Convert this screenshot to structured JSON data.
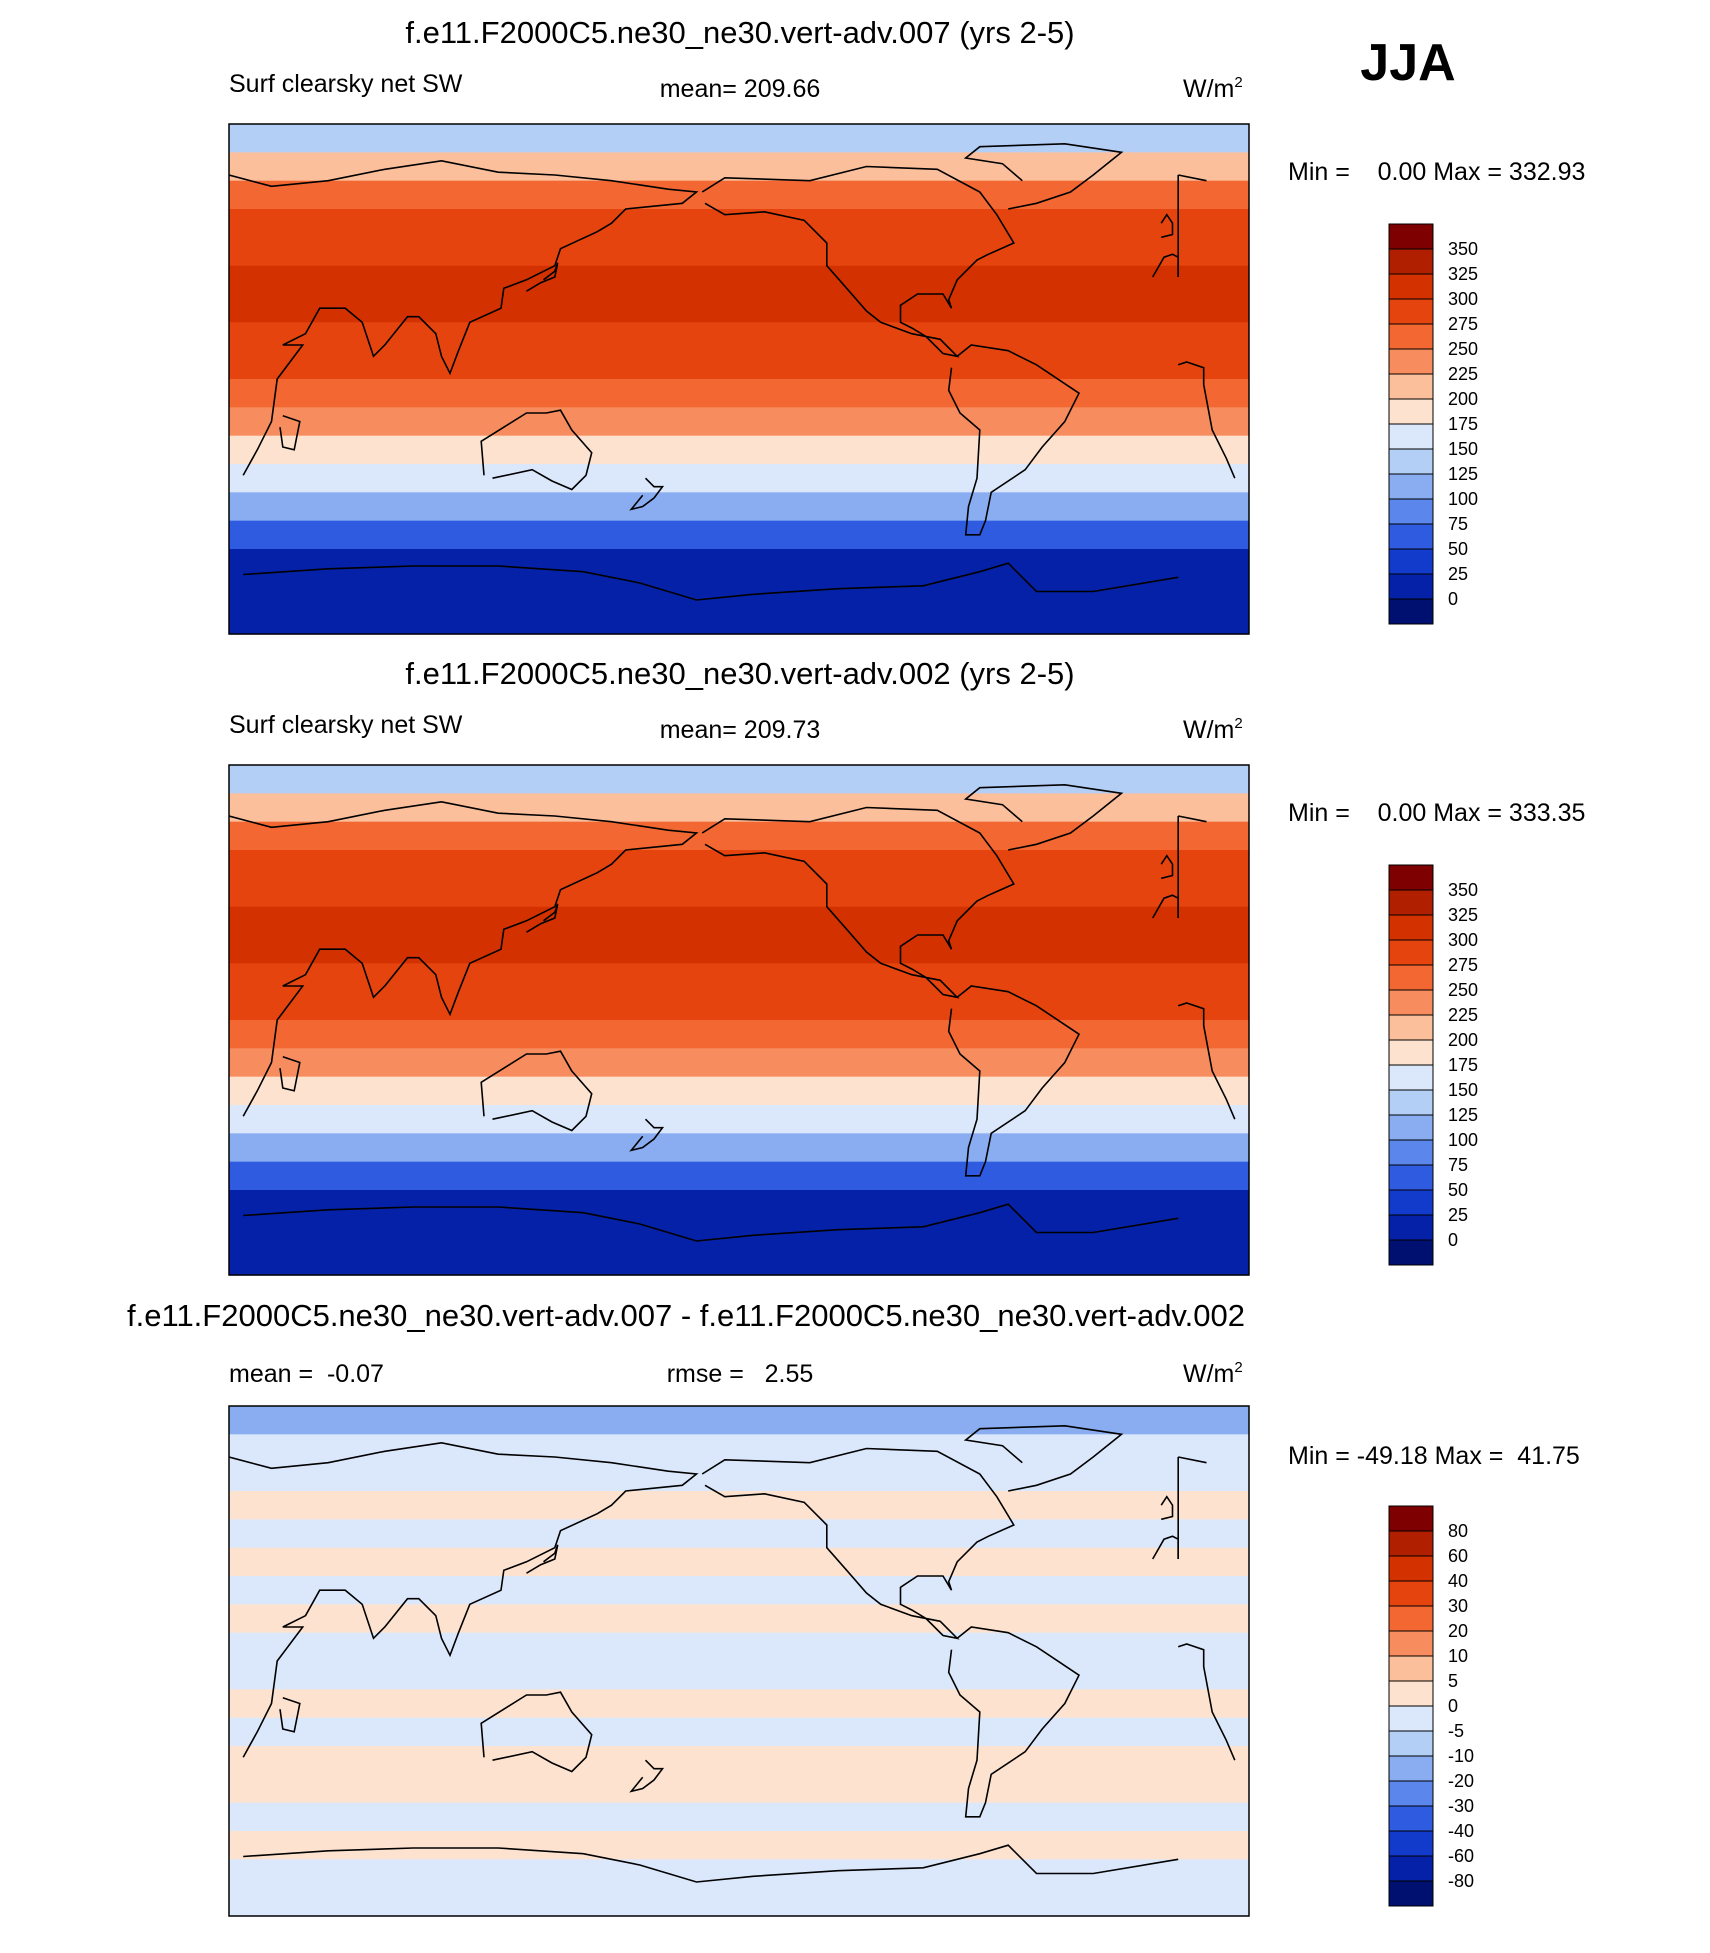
{
  "season": "JJA",
  "units": "W/m",
  "units_sup": "2",
  "chart_data": [
    {
      "type": "heatmap",
      "title": "f.e11.F2000C5.ne30_ne30.vert-adv.007 (yrs 2-5)",
      "left_label": "Surf clearsky net SW",
      "center_label": "mean= 209.66",
      "mean": 209.66,
      "minmax_label": "Min =    0.00 Max = 332.93",
      "min": 0.0,
      "max": 332.93,
      "colorbar": {
        "levels": [
          "350",
          "325",
          "300",
          "275",
          "250",
          "225",
          "200",
          "175",
          "150",
          "125",
          "100",
          "75",
          "50",
          "25",
          "0"
        ],
        "colors": [
          "#7f0000",
          "#b01f00",
          "#d43100",
          "#e6440f",
          "#f26732",
          "#f78d5e",
          "#fbbf9c",
          "#fde3cf",
          "#dbe8fb",
          "#b4cff6",
          "#89adf0",
          "#5b86eb",
          "#2e5be0",
          "#123bcc",
          "#0421a8",
          "#001070"
        ]
      },
      "field": {
        "lat_deg": [
          85,
          75,
          65,
          55,
          45,
          35,
          25,
          15,
          5,
          -5,
          -15,
          -25,
          -35,
          -45,
          -55,
          -65,
          -75,
          -85
        ],
        "zonal_mean": [
          140,
          210,
          270,
          285,
          292,
          300,
          300,
          292,
          280,
          262,
          232,
          188,
          150,
          103,
          60,
          20,
          2,
          0
        ]
      }
    },
    {
      "type": "heatmap",
      "title": "f.e11.F2000C5.ne30_ne30.vert-adv.002 (yrs 2-5)",
      "left_label": "Surf clearsky net SW",
      "center_label": "mean= 209.73",
      "mean": 209.73,
      "minmax_label": "Min =    0.00 Max = 333.35",
      "min": 0.0,
      "max": 333.35,
      "colorbar": {
        "levels": [
          "350",
          "325",
          "300",
          "275",
          "250",
          "225",
          "200",
          "175",
          "150",
          "125",
          "100",
          "75",
          "50",
          "25",
          "0"
        ],
        "colors": [
          "#7f0000",
          "#b01f00",
          "#d43100",
          "#e6440f",
          "#f26732",
          "#f78d5e",
          "#fbbf9c",
          "#fde3cf",
          "#dbe8fb",
          "#b4cff6",
          "#89adf0",
          "#5b86eb",
          "#2e5be0",
          "#123bcc",
          "#0421a8",
          "#001070"
        ]
      },
      "field": {
        "lat_deg": [
          85,
          75,
          65,
          55,
          45,
          35,
          25,
          15,
          5,
          -5,
          -15,
          -25,
          -35,
          -45,
          -55,
          -65,
          -75,
          -85
        ],
        "zonal_mean": [
          140,
          210,
          270,
          285,
          292,
          300,
          300,
          292,
          280,
          262,
          232,
          188,
          150,
          103,
          60,
          20,
          2,
          0
        ]
      }
    },
    {
      "type": "heatmap",
      "title": "f.e11.F2000C5.ne30_ne30.vert-adv.007 - f.e11.F2000C5.ne30_ne30.vert-adv.002",
      "left_label": "mean =  -0.07",
      "center_label": "rmse =   2.55",
      "mean": -0.07,
      "rmse": 2.55,
      "minmax_label": "Min = -49.18 Max =  41.75",
      "min": -49.18,
      "max": 41.75,
      "colorbar": {
        "levels": [
          "80",
          "60",
          "40",
          "30",
          "20",
          "10",
          "5",
          "0",
          "-5",
          "-10",
          "-20",
          "-30",
          "-40",
          "-60",
          "-80"
        ],
        "colors": [
          "#7f0000",
          "#b01f00",
          "#d43100",
          "#e6440f",
          "#f26732",
          "#f78d5e",
          "#fbbf9c",
          "#fde3cf",
          "#dbe8fb",
          "#b4cff6",
          "#89adf0",
          "#5b86eb",
          "#2e5be0",
          "#123bcc",
          "#0421a8",
          "#001070"
        ]
      },
      "field": {
        "lat_deg": [
          85,
          75,
          65,
          55,
          45,
          35,
          25,
          15,
          5,
          -5,
          -15,
          -25,
          -35,
          -45,
          -55,
          -65,
          -75,
          -85
        ],
        "zonal_mean": [
          -12,
          -4,
          -1,
          1,
          -1,
          2,
          -1,
          1,
          -1,
          -1,
          1,
          -1,
          1,
          1,
          -1,
          1,
          -1,
          -1
        ]
      }
    }
  ]
}
